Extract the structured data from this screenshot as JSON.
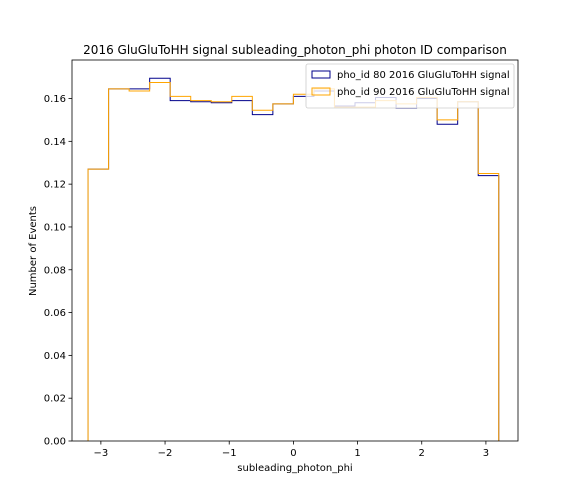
{
  "chart_data": {
    "type": "line",
    "title": "2016 GluGluToHH signal subleading_photon_phi photon ID comparison",
    "xlabel": "subleading_photon_phi",
    "ylabel": "Number of Events",
    "xlim": [
      -3.45,
      3.5
    ],
    "ylim": [
      0.0,
      0.178
    ],
    "xticks": [
      -3,
      -2,
      -1,
      0,
      1,
      2,
      3
    ],
    "xtick_labels": [
      "−3",
      "−2",
      "−1",
      "0",
      "1",
      "2",
      "3"
    ],
    "yticks": [
      0.0,
      0.02,
      0.04,
      0.06,
      0.08,
      0.1,
      0.12,
      0.14,
      0.16
    ],
    "ytick_labels": [
      "0.00",
      "0.02",
      "0.04",
      "0.06",
      "0.08",
      "0.10",
      "0.12",
      "0.14",
      "0.16"
    ],
    "grid": false,
    "legend_position": "top-right",
    "bin_edges": [
      -3.2,
      -2.88,
      -2.56,
      -2.24,
      -1.92,
      -1.6,
      -1.28,
      -0.96,
      -0.64,
      -0.32,
      0.0,
      0.32,
      0.64,
      0.96,
      1.28,
      1.6,
      1.92,
      2.24,
      2.56,
      2.88,
      3.2
    ],
    "series": [
      {
        "name": "pho_id 80 2016 GluGluToHH signal",
        "color": "#00008b",
        "values": [
          0.127,
          0.1645,
          0.1645,
          0.1695,
          0.159,
          0.1585,
          0.158,
          0.159,
          0.1525,
          0.1575,
          0.161,
          0.1635,
          0.1565,
          0.158,
          0.1605,
          0.1555,
          0.16,
          0.148,
          0.1585,
          0.124
        ]
      },
      {
        "name": "pho_id 90 2016 GluGluToHH signal",
        "color": "#ffa500",
        "values": [
          0.127,
          0.1645,
          0.1635,
          0.1675,
          0.161,
          0.159,
          0.1585,
          0.161,
          0.1545,
          0.1575,
          0.162,
          0.1645,
          0.156,
          0.156,
          0.159,
          0.1575,
          0.1605,
          0.15,
          0.1585,
          0.125
        ]
      }
    ]
  }
}
